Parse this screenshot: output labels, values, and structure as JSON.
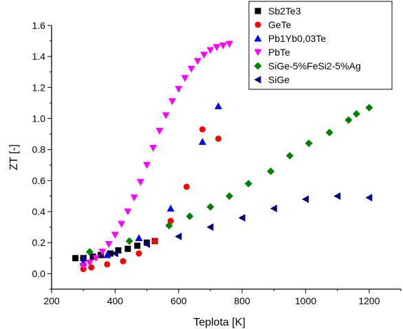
{
  "chart_data": {
    "type": "scatter",
    "xlabel": "Teplota [K]",
    "ylabel": "ZT [-]",
    "xlim": [
      200,
      1300
    ],
    "ylim": [
      -0.1,
      1.6
    ],
    "x_ticks": [
      200,
      400,
      600,
      800,
      1000,
      1200
    ],
    "y_ticks": [
      0.0,
      0.2,
      0.4,
      0.6,
      0.8,
      1.0,
      1.2,
      1.4,
      1.6
    ],
    "grid": false,
    "legend_position": "top-right",
    "series": [
      {
        "name": "Sb2Te3",
        "marker": "square",
        "color": "#000000",
        "points": [
          [
            275,
            0.1
          ],
          [
            300,
            0.1
          ],
          [
            330,
            0.11
          ],
          [
            355,
            0.12
          ],
          [
            385,
            0.13
          ],
          [
            410,
            0.15
          ],
          [
            440,
            0.16
          ],
          [
            470,
            0.18
          ],
          [
            500,
            0.2
          ],
          [
            525,
            0.21
          ]
        ]
      },
      {
        "name": "GeTe",
        "marker": "circle",
        "color": "#ff0000",
        "points": [
          [
            300,
            0.03
          ],
          [
            325,
            0.04
          ],
          [
            375,
            0.06
          ],
          [
            425,
            0.08
          ],
          [
            475,
            0.13
          ],
          [
            525,
            0.21
          ],
          [
            575,
            0.34
          ],
          [
            625,
            0.56
          ],
          [
            675,
            0.93
          ],
          [
            725,
            0.87
          ]
        ]
      },
      {
        "name": "Pb1Yb0,03Te",
        "marker": "triangle-up",
        "color": "#0000ff",
        "points": [
          [
            300,
            0.07
          ],
          [
            375,
            0.12
          ],
          [
            475,
            0.23
          ],
          [
            575,
            0.42
          ],
          [
            675,
            0.85
          ],
          [
            725,
            1.08
          ]
        ]
      },
      {
        "name": "PbTe",
        "marker": "triangle-down",
        "color": "#ff00ff",
        "points": [
          [
            300,
            0.05
          ],
          [
            320,
            0.07
          ],
          [
            340,
            0.1
          ],
          [
            360,
            0.14
          ],
          [
            380,
            0.19
          ],
          [
            400,
            0.25
          ],
          [
            420,
            0.32
          ],
          [
            440,
            0.4
          ],
          [
            460,
            0.49
          ],
          [
            480,
            0.59
          ],
          [
            500,
            0.7
          ],
          [
            520,
            0.81
          ],
          [
            540,
            0.92
          ],
          [
            560,
            1.02
          ],
          [
            580,
            1.11
          ],
          [
            600,
            1.19
          ],
          [
            620,
            1.26
          ],
          [
            640,
            1.32
          ],
          [
            660,
            1.37
          ],
          [
            680,
            1.41
          ],
          [
            700,
            1.44
          ],
          [
            720,
            1.46
          ],
          [
            740,
            1.47
          ],
          [
            760,
            1.48
          ]
        ]
      },
      {
        "name": "SiGe-5%FeSi2-5%Ag",
        "marker": "diamond",
        "color": "#008000",
        "points": [
          [
            320,
            0.14
          ],
          [
            445,
            0.21
          ],
          [
            570,
            0.31
          ],
          [
            635,
            0.37
          ],
          [
            700,
            0.43
          ],
          [
            760,
            0.5
          ],
          [
            820,
            0.58
          ],
          [
            890,
            0.66
          ],
          [
            950,
            0.76
          ],
          [
            1010,
            0.84
          ],
          [
            1075,
            0.91
          ],
          [
            1135,
            0.99
          ],
          [
            1160,
            1.03
          ],
          [
            1200,
            1.07
          ]
        ]
      },
      {
        "name": "SiGe",
        "marker": "triangle-left",
        "color": "#00008b",
        "points": [
          [
            300,
            0.1
          ],
          [
            400,
            0.13
          ],
          [
            500,
            0.19
          ],
          [
            600,
            0.24
          ],
          [
            700,
            0.3
          ],
          [
            800,
            0.36
          ],
          [
            900,
            0.42
          ],
          [
            1000,
            0.48
          ],
          [
            1100,
            0.5
          ],
          [
            1200,
            0.49
          ]
        ]
      }
    ]
  }
}
